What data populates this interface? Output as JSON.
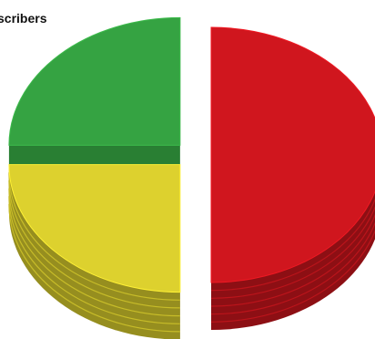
{
  "chart_data": {
    "type": "pie",
    "title": "scribers",
    "style": "3d-exploded",
    "legend": "none",
    "slices": [
      {
        "value": 50,
        "color": "#d0161e"
      },
      {
        "value": 25,
        "color": "#ddd12e"
      },
      {
        "value": 25,
        "color": "#35a342"
      }
    ]
  }
}
